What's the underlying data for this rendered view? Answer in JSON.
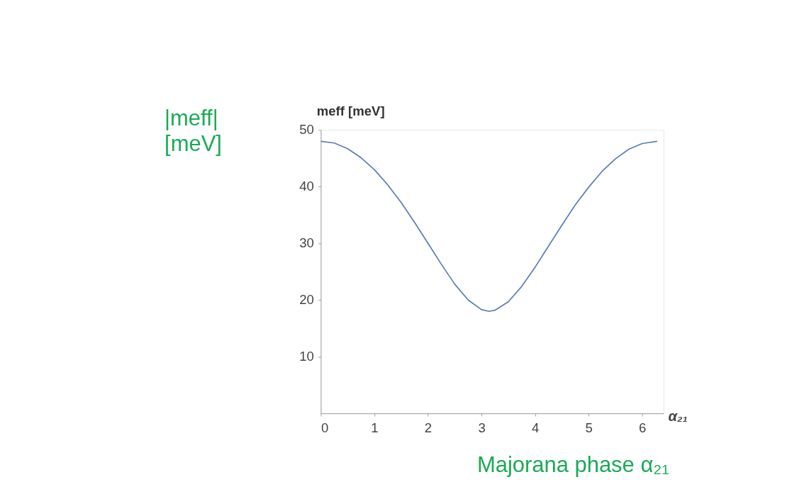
{
  "chart_data": {
    "type": "line",
    "xlabel": "α₂₁",
    "ylabel": "meff [meV]",
    "annotations": [
      "|meff|\n[meV]",
      "Majorana phase α₂₁"
    ],
    "x": [
      0,
      0.25,
      0.5,
      0.75,
      1,
      1.25,
      1.5,
      1.75,
      2,
      2.25,
      2.5,
      2.75,
      3,
      3.14,
      3.25,
      3.5,
      3.75,
      4,
      4.25,
      4.5,
      4.75,
      5,
      5.25,
      5.5,
      5.75,
      6,
      6.28
    ],
    "series": [
      {
        "color": "#5b7db5",
        "values": [
          48,
          47.7,
          46.7,
          45.1,
          43.0,
          40.3,
          37.2,
          33.7,
          30.0,
          26.3,
          22.8,
          20.0,
          18.3,
          18.0,
          18.2,
          19.7,
          22.4,
          25.8,
          29.5,
          33.2,
          36.8,
          39.9,
          42.7,
          44.9,
          46.6,
          47.6,
          48
        ]
      }
    ],
    "xlim": [
      0,
      6.4
    ],
    "xticks": [
      0,
      1,
      2,
      3,
      4,
      5,
      6
    ],
    "ylim": [
      0,
      50
    ],
    "yticks": [
      10,
      20,
      30,
      40,
      50
    ],
    "grid": false,
    "marker": "none",
    "line_style": "solid"
  }
}
